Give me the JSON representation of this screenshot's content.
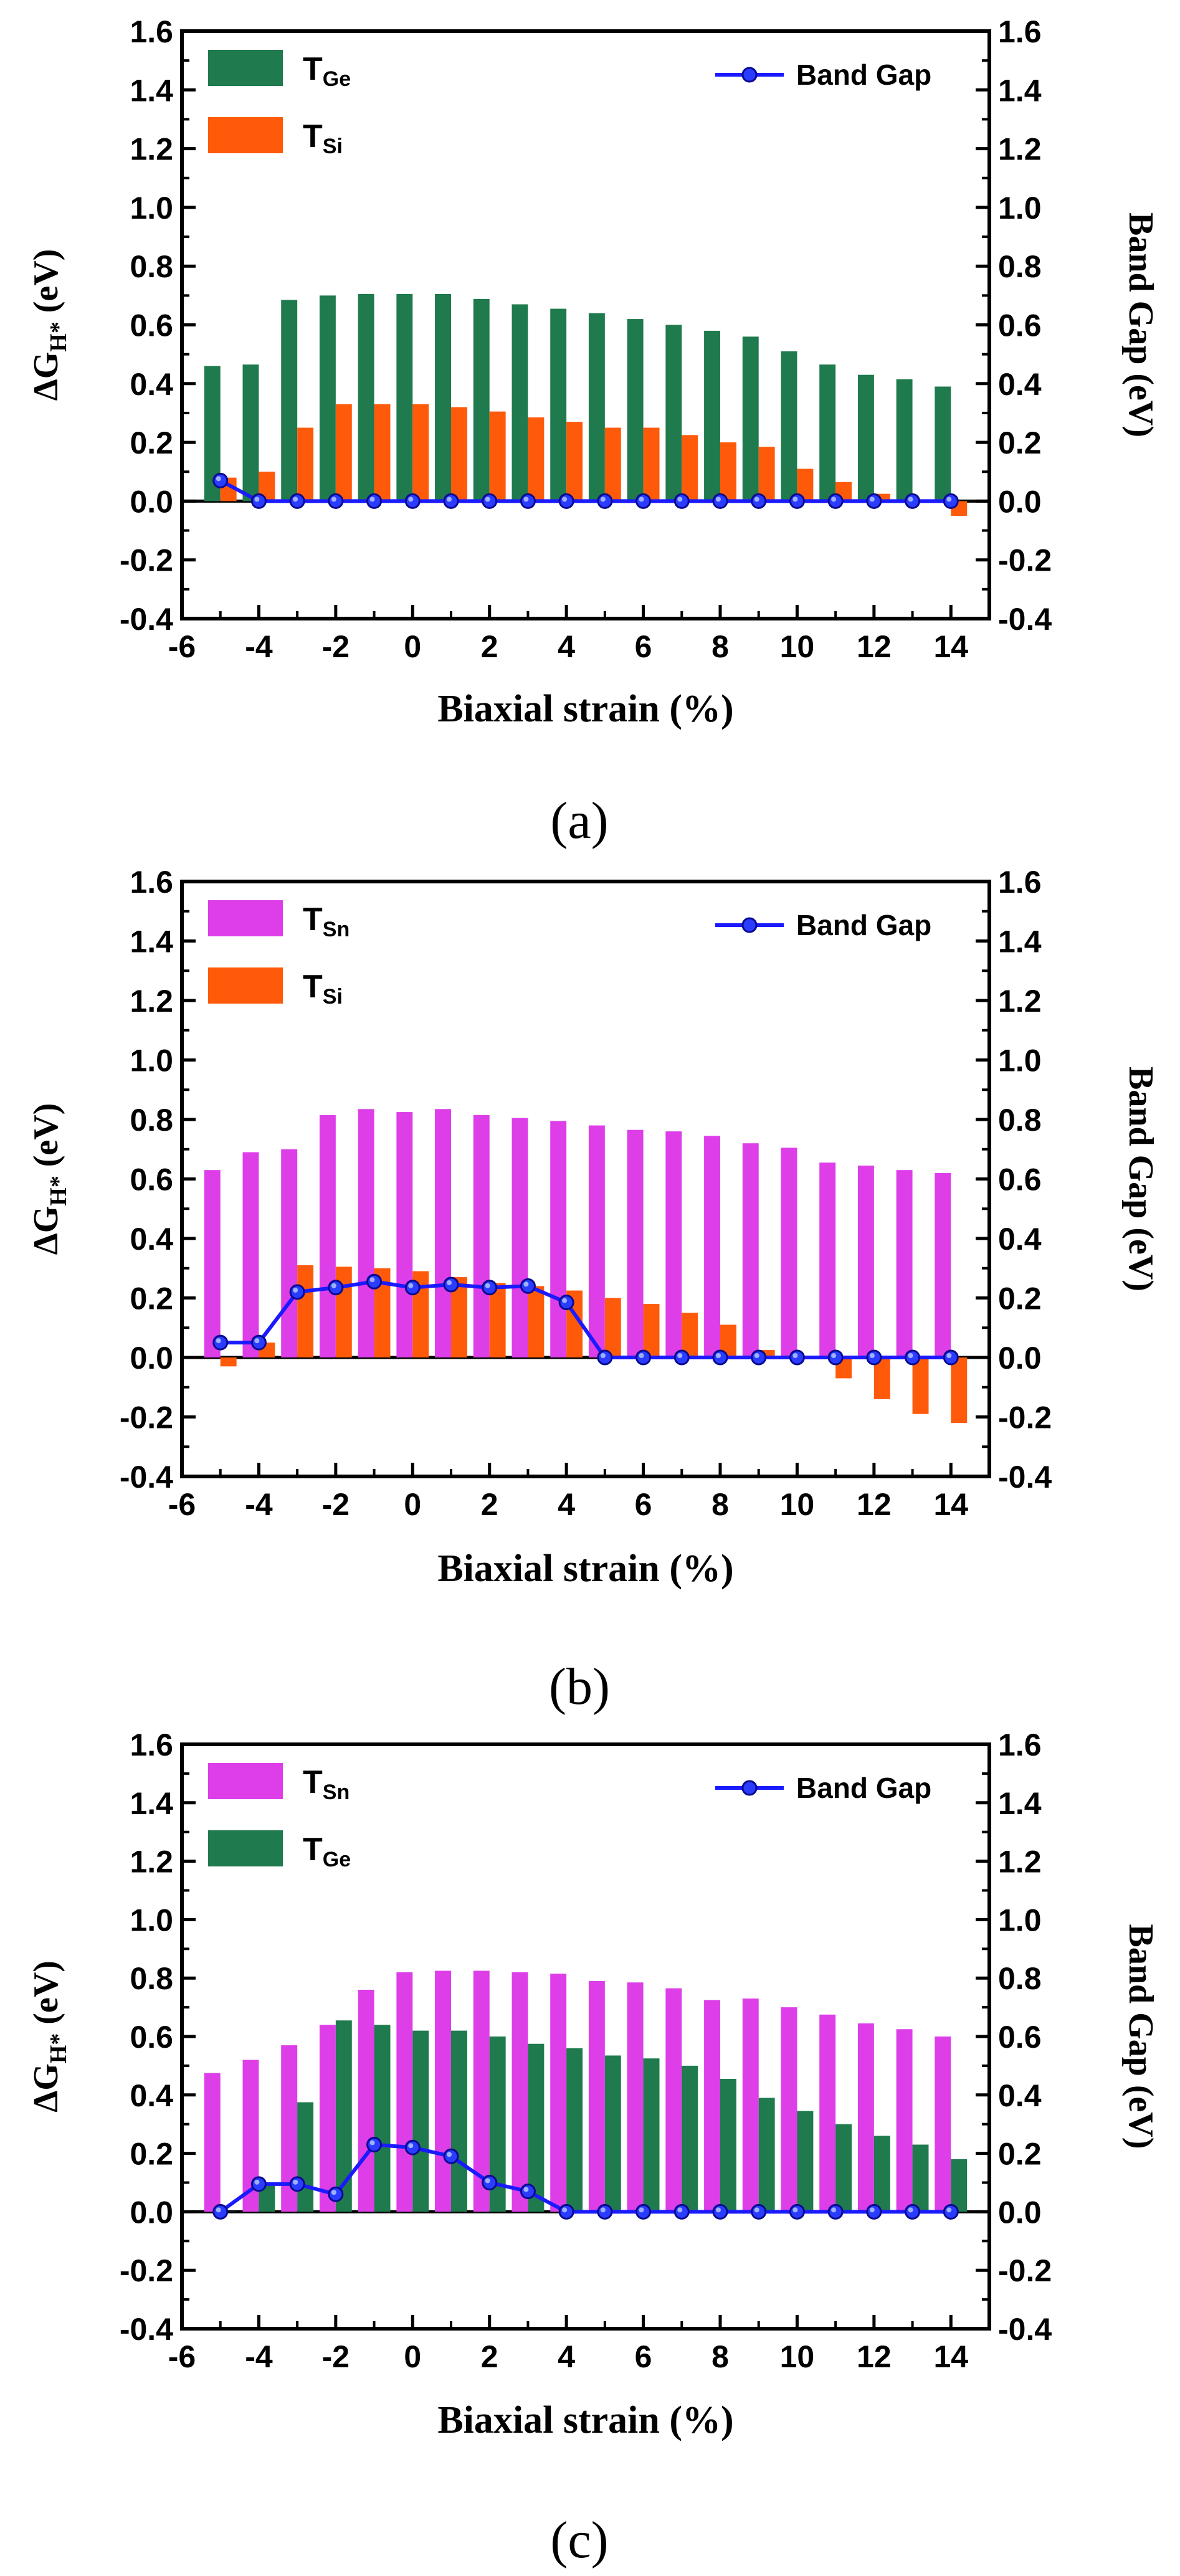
{
  "colors": {
    "T_Ge": "#1f7a4d",
    "T_Si": "#ff5a0a",
    "T_Sn": "#dd3ee8",
    "band_gap": "#1a1aff"
  },
  "chart_data": [
    {
      "panel_label": "(a)",
      "type": "bar",
      "xlabel": "Biaxial strain (%)",
      "ylabel_left": {
        "main": "ΔG",
        "sub": "H*",
        "unit": " (eV)"
      },
      "ylabel_right": "Band Gap (eV)",
      "xlim": [
        -6,
        15
      ],
      "ylim": [
        -0.4,
        1.6
      ],
      "xticks": [
        "-6",
        "-4",
        "-2",
        "0",
        "2",
        "4",
        "6",
        "8",
        "10",
        "12",
        "14"
      ],
      "yticks": [
        "-0.4",
        "-0.2",
        "0.0",
        "0.2",
        "0.4",
        "0.6",
        "0.8",
        "1.0",
        "1.2",
        "1.4",
        "1.6"
      ],
      "x": [
        -5,
        -4,
        -3,
        -2,
        -1,
        0,
        1,
        2,
        3,
        4,
        5,
        6,
        7,
        8,
        9,
        10,
        11,
        12,
        13,
        14
      ],
      "series": [
        {
          "name": "T",
          "sub": "Ge",
          "color_key": "T_Ge",
          "values": [
            0.46,
            0.465,
            0.685,
            0.7,
            0.705,
            0.705,
            0.705,
            0.688,
            0.67,
            0.655,
            0.64,
            0.62,
            0.6,
            0.58,
            0.56,
            0.51,
            0.465,
            0.43,
            0.415,
            0.39
          ]
        },
        {
          "name": "T",
          "sub": "Si",
          "color_key": "T_Si",
          "values": [
            0.08,
            0.1,
            0.25,
            0.33,
            0.33,
            0.33,
            0.32,
            0.305,
            0.285,
            0.27,
            0.25,
            0.25,
            0.225,
            0.2,
            0.185,
            0.11,
            0.065,
            0.025,
            0.0,
            -0.05
          ]
        }
      ],
      "band_gap": {
        "name": "Band Gap",
        "values": [
          0.07,
          0.0,
          0.0,
          0.0,
          0.0,
          0.0,
          0.0,
          0.0,
          0.0,
          0.0,
          0.0,
          0.0,
          0.0,
          0.0,
          0.0,
          0.0,
          0.0,
          0.0,
          0.0,
          0.0
        ]
      }
    },
    {
      "panel_label": "(b)",
      "type": "bar",
      "xlabel": "Biaxial strain (%)",
      "ylabel_left": {
        "main": "ΔG",
        "sub": "H*",
        "unit": " (eV)"
      },
      "ylabel_right": "Band Gap (eV)",
      "xlim": [
        -6,
        15
      ],
      "ylim": [
        -0.4,
        1.6
      ],
      "xticks": [
        "-6",
        "-4",
        "-2",
        "0",
        "2",
        "4",
        "6",
        "8",
        "10",
        "12",
        "14"
      ],
      "yticks": [
        "-0.4",
        "-0.2",
        "0.0",
        "0.2",
        "0.4",
        "0.6",
        "0.8",
        "1.0",
        "1.2",
        "1.4",
        "1.6"
      ],
      "x": [
        -5,
        -4,
        -3,
        -2,
        -1,
        0,
        1,
        2,
        3,
        4,
        5,
        6,
        7,
        8,
        9,
        10,
        11,
        12,
        13,
        14
      ],
      "series": [
        {
          "name": "T",
          "sub": "Sn",
          "color_key": "T_Sn",
          "values": [
            0.63,
            0.69,
            0.7,
            0.815,
            0.835,
            0.825,
            0.835,
            0.815,
            0.805,
            0.795,
            0.78,
            0.765,
            0.76,
            0.745,
            0.72,
            0.705,
            0.655,
            0.645,
            0.63,
            0.62
          ]
        },
        {
          "name": "T",
          "sub": "Si",
          "color_key": "T_Si",
          "values": [
            -0.03,
            0.05,
            0.31,
            0.305,
            0.3,
            0.29,
            0.27,
            0.25,
            0.24,
            0.225,
            0.2,
            0.18,
            0.15,
            0.11,
            0.025,
            -0.005,
            -0.07,
            -0.14,
            -0.19,
            -0.22
          ]
        }
      ],
      "band_gap": {
        "name": "Band Gap",
        "values": [
          0.05,
          0.05,
          0.22,
          0.235,
          0.255,
          0.235,
          0.245,
          0.235,
          0.24,
          0.185,
          0.0,
          0.0,
          0.0,
          0.0,
          0.0,
          0.0,
          0.0,
          0.0,
          0.0,
          0.0
        ]
      }
    },
    {
      "panel_label": "(c)",
      "type": "bar",
      "xlabel": "Biaxial strain (%)",
      "ylabel_left": {
        "main": "ΔG",
        "sub": "H*",
        "unit": " (eV)"
      },
      "ylabel_right": "Band Gap (eV)",
      "xlim": [
        -6,
        15
      ],
      "ylim": [
        -0.4,
        1.6
      ],
      "xticks": [
        "-6",
        "-4",
        "-2",
        "0",
        "2",
        "4",
        "6",
        "8",
        "10",
        "12",
        "14"
      ],
      "yticks": [
        "-0.4",
        "-0.2",
        "0.0",
        "0.2",
        "0.4",
        "0.6",
        "0.8",
        "1.0",
        "1.2",
        "1.4",
        "1.6"
      ],
      "x": [
        -5,
        -4,
        -3,
        -2,
        -1,
        0,
        1,
        2,
        3,
        4,
        5,
        6,
        7,
        8,
        9,
        10,
        11,
        12,
        13,
        14
      ],
      "series": [
        {
          "name": "T",
          "sub": "Sn",
          "color_key": "T_Sn",
          "values": [
            0.475,
            0.52,
            0.57,
            0.64,
            0.76,
            0.82,
            0.825,
            0.825,
            0.82,
            0.815,
            0.79,
            0.785,
            0.765,
            0.725,
            0.73,
            0.7,
            0.675,
            0.645,
            0.625,
            0.6
          ]
        },
        {
          "name": "T",
          "sub": "Ge",
          "color_key": "T_Ge",
          "values": [
            0.0,
            0.09,
            0.375,
            0.655,
            0.64,
            0.62,
            0.62,
            0.6,
            0.575,
            0.56,
            0.535,
            0.525,
            0.5,
            0.455,
            0.39,
            0.345,
            0.3,
            0.26,
            0.23,
            0.18
          ]
        }
      ],
      "band_gap": {
        "name": "Band Gap",
        "values": [
          0.0,
          0.095,
          0.095,
          0.06,
          0.23,
          0.22,
          0.19,
          0.1,
          0.07,
          0.0,
          0.0,
          0.0,
          0.0,
          0.0,
          0.0,
          0.0,
          0.0,
          0.0,
          0.0,
          0.0
        ]
      }
    }
  ]
}
